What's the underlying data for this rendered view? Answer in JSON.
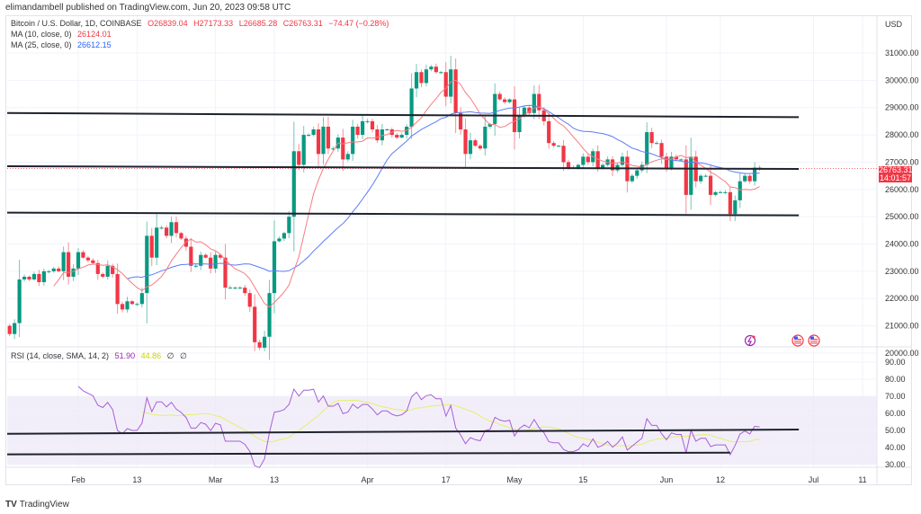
{
  "header": {
    "published": "elimandambell published on TradingView.com, Jun 20, 2023 09:58 UTC"
  },
  "legend": {
    "symbol": "Bitcoin / U.S. Dollar, 1D, COINBASE",
    "open": "O26839.04",
    "high": "H27173.33",
    "low": "L26685.28",
    "close": "C26763.31",
    "change": "−74.47 (−0.28%)",
    "ma10_label": "MA (10, close, 0)",
    "ma10_value": "26124.01",
    "ma25_label": "MA (25, close, 0)",
    "ma25_value": "26612.15",
    "rsi_label": "RSI (14, close, SMA, 14, 2)",
    "rsi_value": "51.90",
    "rsi_sma_value": "44.86",
    "rsi_extra1": "∅",
    "rsi_extra2": "∅"
  },
  "price_axis": {
    "currency": "USD",
    "last_price": "26763.31",
    "countdown": "14:01:57"
  },
  "footer": {
    "logo_text": "TradingView"
  },
  "colors": {
    "up": "#089981",
    "down": "#f23645",
    "ma10": "#f77c80",
    "ma25": "#5b7cf7",
    "rsi": "#a85fd6",
    "rsi_sma": "#e6ef6a",
    "rsi_band": "#ede7f6",
    "trendline": "#1e222d"
  },
  "icons": [
    "lightning-event-icon",
    "us-flag-event-icon",
    "us-flag-event-icon"
  ],
  "chart_data": [
    {
      "type": "candlestick",
      "start_date": "2023-01-18",
      "interval": "1D",
      "close": [
        20700,
        21100,
        22700,
        22800,
        22700,
        22900,
        22600,
        23000,
        23000,
        23100,
        23000,
        23700,
        22800,
        23100,
        23700,
        23500,
        23400,
        23300,
        22900,
        22800,
        23200,
        22900,
        21800,
        21600,
        21900,
        21800,
        21800,
        22200,
        24300,
        23500,
        24600,
        24600,
        24300,
        24800,
        24400,
        24200,
        23900,
        23200,
        23200,
        23600,
        23500,
        23100,
        23600,
        23500,
        22400,
        22400,
        22400,
        22400,
        22200,
        21700,
        20400,
        20200,
        20600,
        22200,
        24100,
        24200,
        24400,
        25000,
        27400,
        26900,
        28000,
        28000,
        28200,
        27300,
        28300,
        27500,
        27500,
        27900,
        27100,
        27300,
        28300,
        28000,
        28500,
        28500,
        28200,
        27800,
        28200,
        28200,
        28000,
        27900,
        28000,
        28300,
        29700,
        30300,
        29900,
        30400,
        30500,
        30300,
        30300,
        29400,
        30400,
        28800,
        28200,
        27300,
        27800,
        27600,
        27500,
        28300,
        28400,
        29500,
        29300,
        29200,
        29300,
        28100,
        28700,
        29000,
        28800,
        29500,
        28900,
        28500,
        27700,
        27600,
        27600,
        27000,
        26800,
        26800,
        26900,
        27200,
        27000,
        27400,
        26800,
        26900,
        27100,
        26700,
        26900,
        27200,
        26300,
        26500,
        26700,
        26900,
        28100,
        27700,
        27700,
        27200,
        26800,
        27200,
        27100,
        27100,
        25800,
        27200,
        26300,
        26500,
        26500,
        25800,
        25900,
        25900,
        25900,
        25100,
        25600,
        26300,
        26500,
        26300,
        26800,
        26763.31
      ],
      "first_open": 21000,
      "yaxis_ticks": [
        "20000.00",
        "21000.00",
        "22000.00",
        "23000.00",
        "24000.00",
        "25000.00",
        "26000.00",
        "27000.00",
        "28000.00",
        "29000.00",
        "30000.00",
        "31000.00"
      ],
      "ylim": [
        19700,
        31600
      ],
      "xaxis_ticks": [
        {
          "label": "Feb",
          "date": "2023-02-01"
        },
        {
          "label": "13",
          "date": "2023-02-13"
        },
        {
          "label": "Mar",
          "date": "2023-03-01"
        },
        {
          "label": "13",
          "date": "2023-03-13"
        },
        {
          "label": "Apr",
          "date": "2023-04-01"
        },
        {
          "label": "17",
          "date": "2023-04-17"
        },
        {
          "label": "May",
          "date": "2023-05-01"
        },
        {
          "label": "15",
          "date": "2023-05-15"
        },
        {
          "label": "Jun",
          "date": "2023-06-01"
        },
        {
          "label": "12",
          "date": "2023-06-12"
        },
        {
          "label": "Jul",
          "date": "2023-07-01"
        },
        {
          "label": "11",
          "date": "2023-07-11"
        }
      ],
      "moving_averages": [
        {
          "name": "MA (10, close, 0)",
          "period": 10
        },
        {
          "name": "MA (25, close, 0)",
          "period": 25
        }
      ],
      "drawn_lines": [
        {
          "from": [
            "2023-01-17",
            28800
          ],
          "to": [
            "2023-06-28",
            28650
          ]
        },
        {
          "from": [
            "2023-01-17",
            26850
          ],
          "to": [
            "2023-06-28",
            26750
          ]
        },
        {
          "from": [
            "2023-01-17",
            25150
          ],
          "to": [
            "2023-06-28",
            25050
          ]
        }
      ],
      "grid": true
    },
    {
      "type": "line",
      "title": "RSI (14, close, SMA, 14, 2)",
      "yaxis_ticks": [
        "30.00",
        "40.00",
        "50.00",
        "60.00",
        "70.00",
        "80.00",
        "90.00"
      ],
      "ylim": [
        30,
        90
      ],
      "band": [
        30,
        70
      ],
      "midline": 50,
      "series": [
        {
          "name": "RSI",
          "period": 14
        },
        {
          "name": "SMA",
          "period": 14
        }
      ],
      "drawn_lines": [
        {
          "from": [
            "2023-01-17",
            48
          ],
          "to": [
            "2023-06-28",
            50.5
          ]
        },
        {
          "from": [
            "2023-01-17",
            36
          ],
          "to": [
            "2023-06-14",
            37
          ]
        }
      ]
    }
  ]
}
